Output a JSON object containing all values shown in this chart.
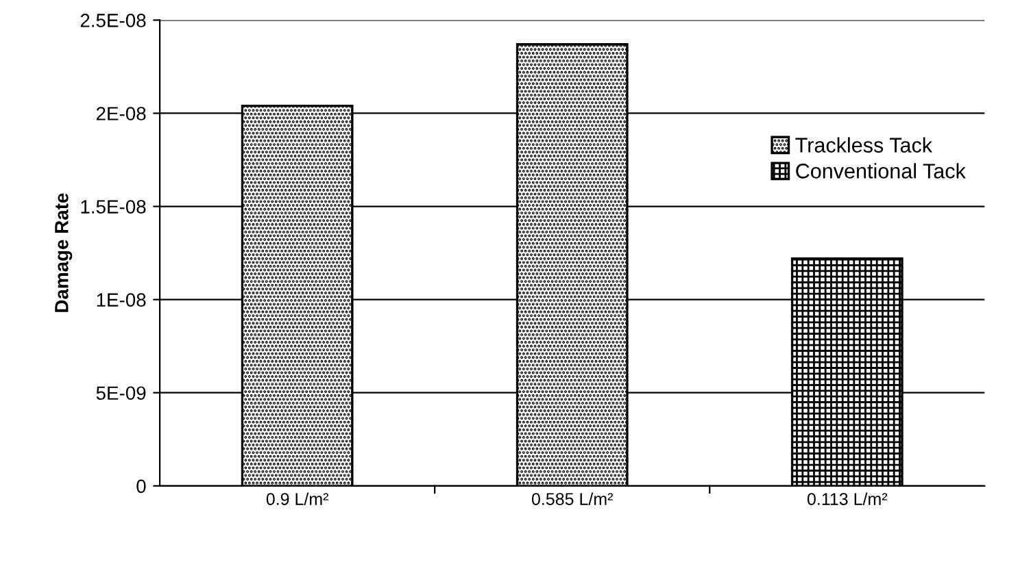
{
  "chart_data": {
    "type": "bar",
    "ylabel": "Damage Rate",
    "categories": [
      "0.9 L/m²",
      "0.585 L/m²",
      "0.113 L/m²"
    ],
    "series": [
      {
        "name": "Trackless Tack",
        "color": "#000000",
        "values": [
          2.04e-08,
          2.37e-08,
          null
        ]
      },
      {
        "name": "Conventional Tack",
        "color": "#000000",
        "values": [
          null,
          null,
          1.22e-08
        ]
      }
    ],
    "ylim": [
      0,
      2.5e-08
    ],
    "yticks": [
      0,
      {
        "value": 5e-09,
        "label": "5E-09"
      },
      {
        "value": 1e-08,
        "label": "1E-08"
      },
      {
        "value": 1.5e-08,
        "label": "1.5E-08"
      },
      {
        "value": 2e-08,
        "label": "2E-08"
      },
      {
        "value": 2.5e-08,
        "label": "2.5E-08"
      }
    ],
    "grid": "y",
    "legend": "right"
  }
}
